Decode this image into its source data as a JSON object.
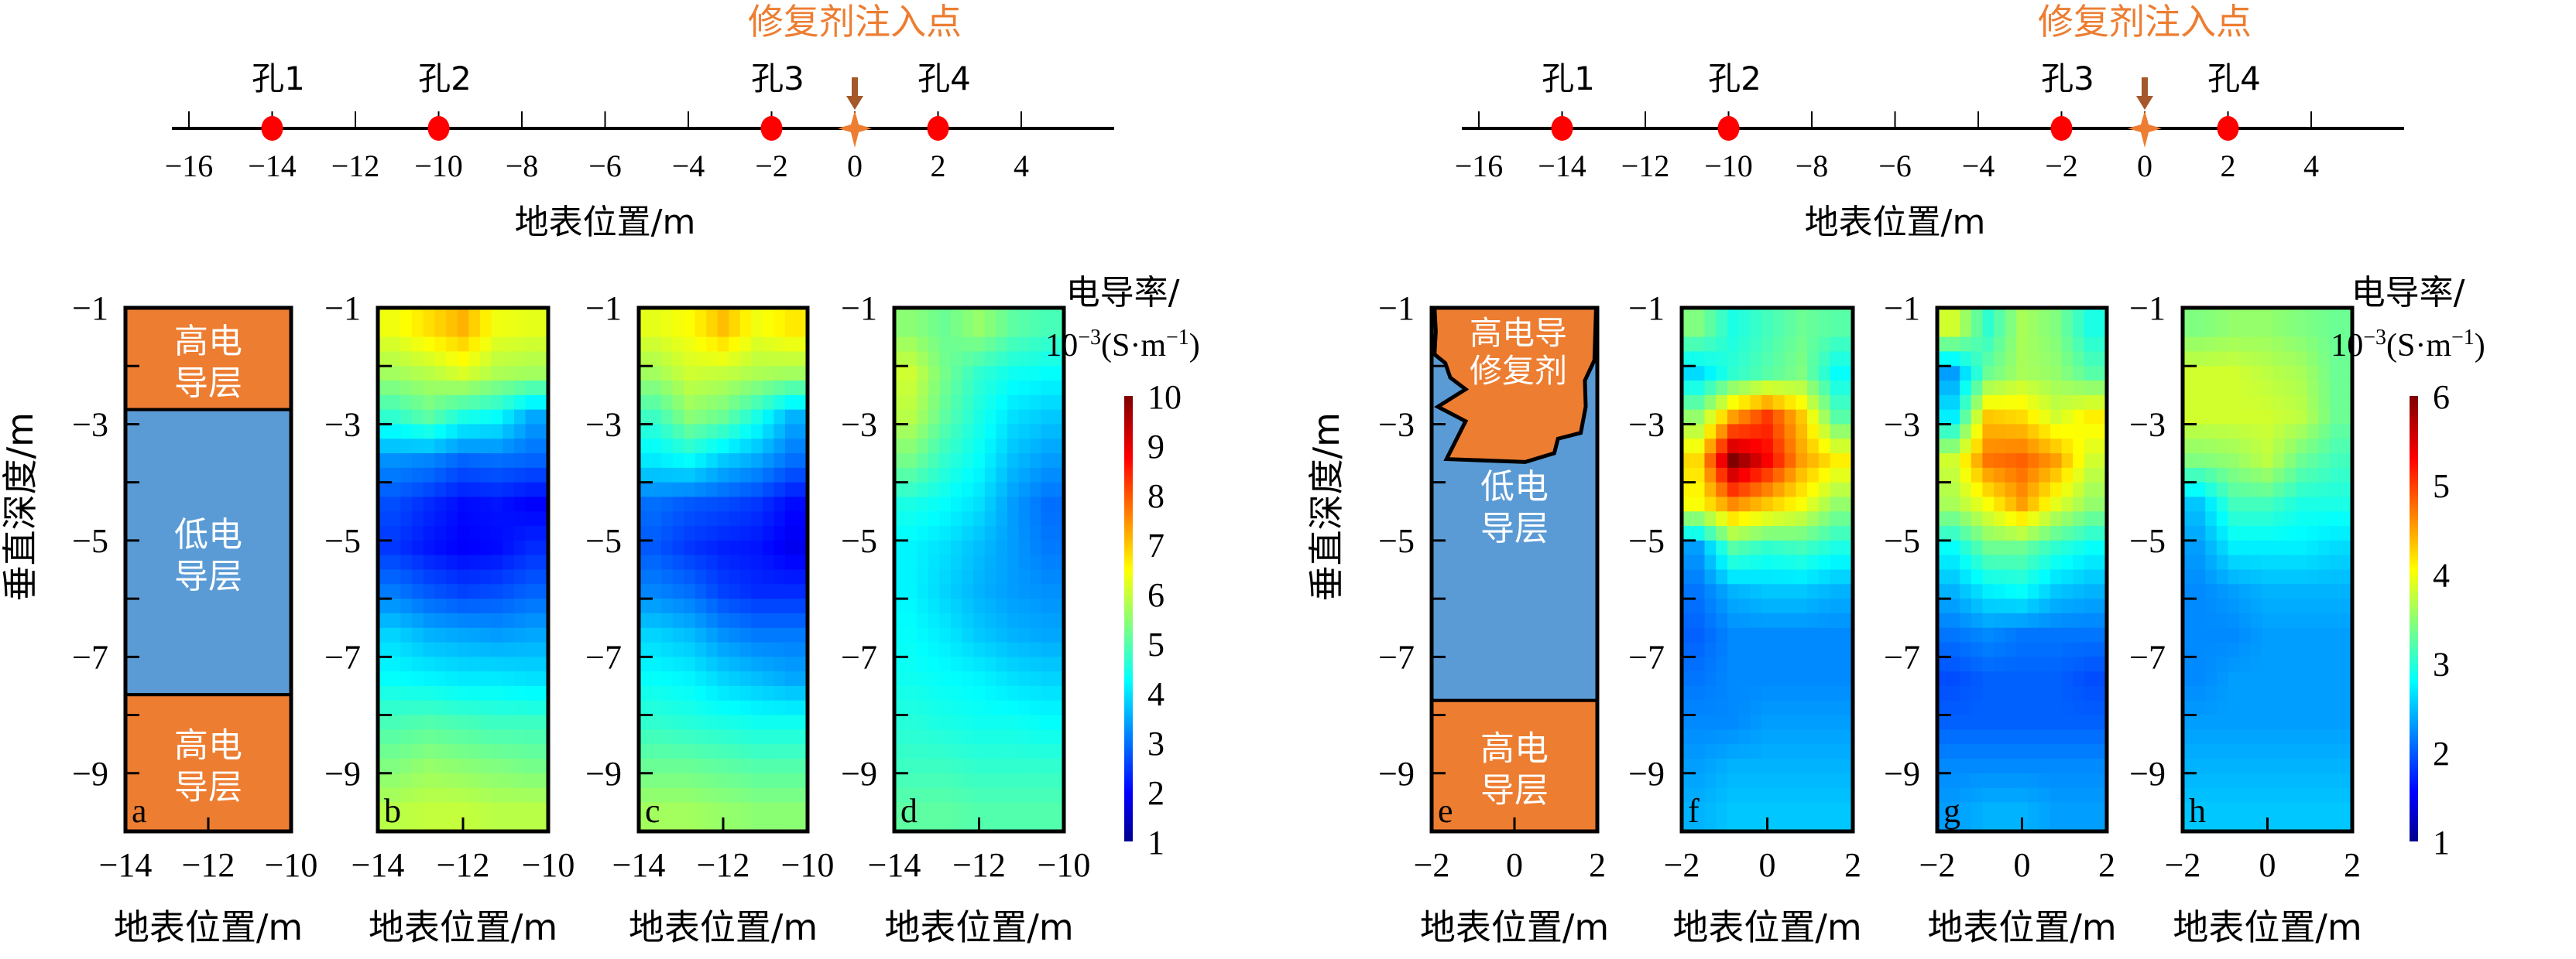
{
  "colors": {
    "high_layer": "#ED7D31",
    "low_layer": "#5B9BD5",
    "hole_marker": "#FF0000",
    "injection_marker": "#ED7D31",
    "injection_arrow": "#A5582A",
    "injection_label": "#ED7D31",
    "axis": "#000000",
    "layer_text": "#FFFFFF"
  },
  "chart_data": [
    {
      "id": "survey-line-left",
      "type": "scatter",
      "title": "修复剂注入点",
      "xlabel": "地表位置/m",
      "xlim": [
        -16,
        4
      ],
      "xticks": [
        -16,
        -14,
        -12,
        -10,
        -8,
        -6,
        -4,
        -2,
        0,
        2,
        4
      ],
      "xtick_labels": [
        "−16",
        "−14",
        "−12",
        "−10",
        "−8",
        "−6",
        "−4",
        "−2",
        "0",
        "2",
        "4"
      ],
      "holes": [
        {
          "label": "孔1",
          "x": -14
        },
        {
          "label": "孔2",
          "x": -10
        },
        {
          "label": "孔3",
          "x": -2
        },
        {
          "label": "孔4",
          "x": 2
        }
      ],
      "injection_point": {
        "x": 0
      }
    },
    {
      "id": "survey-line-right",
      "type": "scatter",
      "title": "修复剂注入点",
      "xlabel": "地表位置/m",
      "xlim": [
        -16,
        4
      ],
      "xticks": [
        -16,
        -14,
        -12,
        -10,
        -8,
        -6,
        -4,
        -2,
        0,
        2,
        4
      ],
      "xtick_labels": [
        "−16",
        "−14",
        "−12",
        "−10",
        "−8",
        "−6",
        "−4",
        "−2",
        "0",
        "2",
        "4"
      ],
      "holes": [
        {
          "label": "孔1",
          "x": -14
        },
        {
          "label": "孔2",
          "x": -10
        },
        {
          "label": "孔3",
          "x": -2
        },
        {
          "label": "孔4",
          "x": 2
        }
      ],
      "injection_point": {
        "x": 0
      }
    },
    {
      "id": "panel-a",
      "type": "diagram",
      "panel_label": "a",
      "xlabel": "地表位置/m",
      "ylabel": "垂直深度/m",
      "xlim": [
        -14,
        -10
      ],
      "ylim": [
        -10,
        -1
      ],
      "xtick_labels": [
        "−14",
        "−12",
        "−10"
      ],
      "xticks": [
        -14,
        -12,
        -10
      ],
      "ytick_labels": [
        "−1",
        "−3",
        "−5",
        "−7",
        "−9"
      ],
      "yticks": [
        -1,
        -3,
        -5,
        -7,
        -9
      ],
      "layers": [
        {
          "name": "high-conductivity-top",
          "text": [
            "高电",
            "导层"
          ],
          "top": -1,
          "bottom": -2.75,
          "kind": "high"
        },
        {
          "name": "low-conductivity",
          "text": [
            "低电",
            "导层"
          ],
          "top": -2.75,
          "bottom": -7.65,
          "kind": "low"
        },
        {
          "name": "high-conductivity-bottom",
          "text": [
            "高电",
            "导层"
          ],
          "top": -7.65,
          "bottom": -10,
          "kind": "high"
        }
      ]
    },
    {
      "id": "panel-b",
      "type": "heatmap",
      "panel_label": "b",
      "xlabel": "地表位置/m",
      "xlim": [
        -14,
        -10
      ],
      "ylim": [
        -10,
        -1
      ],
      "xtick_labels": [
        "−14",
        "−12",
        "−10"
      ],
      "ytick_labels": [
        "−1",
        "−3",
        "−5",
        "−7",
        "−9"
      ],
      "value_range": [
        1,
        10
      ],
      "unit": "10⁻³ S·m⁻¹",
      "grid": [
        [
          6.5,
          6.9,
          7.3,
          6.5,
          6.4
        ],
        [
          5.8,
          6.0,
          6.3,
          5.9,
          5.8
        ],
        [
          4.8,
          5.2,
          4.6,
          4.4,
          3.6
        ],
        [
          3.4,
          3.3,
          3.0,
          3.1,
          3.0
        ],
        [
          2.8,
          2.5,
          2.2,
          2.3,
          2.1
        ],
        [
          2.6,
          2.3,
          2.1,
          2.2,
          2.5
        ],
        [
          3.2,
          2.9,
          2.7,
          2.8,
          3.0
        ],
        [
          4.0,
          3.7,
          3.6,
          3.5,
          3.6
        ],
        [
          4.4,
          4.3,
          4.2,
          4.2,
          4.1
        ],
        [
          5.0,
          5.1,
          5.0,
          4.9,
          4.9
        ],
        [
          5.5,
          5.7,
          5.6,
          5.5,
          5.4
        ],
        [
          6.0,
          6.1,
          6.1,
          6.0,
          6.0
        ]
      ]
    },
    {
      "id": "panel-c",
      "type": "heatmap",
      "panel_label": "c",
      "xlabel": "地表位置/m",
      "xlim": [
        -14,
        -10
      ],
      "ylim": [
        -10,
        -1
      ],
      "xtick_labels": [
        "−14",
        "−12",
        "−10"
      ],
      "ytick_labels": [
        "−1",
        "−3",
        "−5",
        "−7",
        "−9"
      ],
      "value_range": [
        1,
        10
      ],
      "unit": "10⁻³ S·m⁻¹",
      "grid": [
        [
          6.4,
          6.6,
          7.2,
          6.5,
          6.8
        ],
        [
          5.8,
          6.2,
          6.1,
          5.9,
          5.8
        ],
        [
          4.9,
          5.6,
          5.3,
          4.6,
          3.7
        ],
        [
          4.2,
          4.4,
          3.9,
          3.6,
          3.1
        ],
        [
          3.1,
          2.9,
          2.8,
          2.6,
          2.2
        ],
        [
          2.9,
          2.6,
          2.4,
          2.3,
          2.0
        ],
        [
          3.3,
          3.1,
          2.7,
          2.5,
          2.5
        ],
        [
          4.0,
          3.8,
          3.4,
          3.2,
          3.2
        ],
        [
          4.4,
          4.3,
          4.0,
          3.8,
          3.6
        ],
        [
          4.8,
          4.7,
          4.6,
          4.5,
          4.5
        ],
        [
          5.3,
          5.3,
          5.2,
          5.1,
          5.1
        ],
        [
          5.8,
          5.8,
          5.7,
          5.6,
          5.6
        ]
      ]
    },
    {
      "id": "panel-d",
      "type": "heatmap",
      "panel_label": "d",
      "xlabel": "地表位置/m",
      "xlim": [
        -14,
        -10
      ],
      "ylim": [
        -10,
        -1
      ],
      "xtick_labels": [
        "−14",
        "−12",
        "−10"
      ],
      "ytick_labels": [
        "−1",
        "−3",
        "−5",
        "−7",
        "−9"
      ],
      "value_range": [
        1,
        10
      ],
      "unit": "10⁻³ S·m⁻¹",
      "grid": [
        [
          5.6,
          5.3,
          5.7,
          5.2,
          5.0
        ],
        [
          6.2,
          5.4,
          4.8,
          4.5,
          4.4
        ],
        [
          6.0,
          5.2,
          4.6,
          4.1,
          3.9
        ],
        [
          5.4,
          4.8,
          4.4,
          3.8,
          3.5
        ],
        [
          4.6,
          4.4,
          4.1,
          3.5,
          3.1
        ],
        [
          4.3,
          4.1,
          3.8,
          3.5,
          3.2
        ],
        [
          4.3,
          4.0,
          3.7,
          3.5,
          3.4
        ],
        [
          4.4,
          4.2,
          3.9,
          3.7,
          3.6
        ],
        [
          4.5,
          4.4,
          4.3,
          4.1,
          4.0
        ],
        [
          4.7,
          4.6,
          4.5,
          4.5,
          4.4
        ],
        [
          4.9,
          4.9,
          4.8,
          4.8,
          4.8
        ],
        [
          5.2,
          5.2,
          5.1,
          5.1,
          5.1
        ]
      ]
    },
    {
      "id": "panel-e",
      "type": "diagram",
      "panel_label": "e",
      "xlabel": "地表位置/m",
      "ylabel": "垂直深度/m",
      "xlim": [
        -2,
        2
      ],
      "ylim": [
        -10,
        -1
      ],
      "xtick_labels": [
        "−2",
        "0",
        "2"
      ],
      "xticks": [
        -2,
        0,
        2
      ],
      "ytick_labels": [
        "−1",
        "−3",
        "−5",
        "−7",
        "−9"
      ],
      "yticks": [
        -1,
        -3,
        -5,
        -7,
        -9
      ],
      "layers": [
        {
          "name": "low-conductivity",
          "text": [
            "低电",
            "导层"
          ],
          "top": -1,
          "bottom": -7.75,
          "kind": "low"
        },
        {
          "name": "high-conductivity-bottom",
          "text": [
            "高电",
            "导层"
          ],
          "top": -7.75,
          "bottom": -10,
          "kind": "high"
        }
      ],
      "remediation_agent": {
        "text": [
          "高电导",
          "修复剂"
        ],
        "outline": [
          [
            -1.93,
            -1.0
          ],
          [
            -1.9,
            -1.4
          ],
          [
            -1.93,
            -1.8
          ],
          [
            -1.67,
            -1.95
          ],
          [
            -1.55,
            -2.2
          ],
          [
            -1.18,
            -2.4
          ],
          [
            -1.85,
            -2.7
          ],
          [
            -1.18,
            -2.95
          ],
          [
            -1.64,
            -3.6
          ],
          [
            0.26,
            -3.65
          ],
          [
            0.96,
            -3.5
          ],
          [
            1.05,
            -3.25
          ],
          [
            1.6,
            -3.15
          ],
          [
            1.72,
            -2.7
          ],
          [
            1.7,
            -2.25
          ],
          [
            1.93,
            -1.9
          ],
          [
            1.97,
            -1.0
          ]
        ]
      }
    },
    {
      "id": "panel-f",
      "type": "heatmap",
      "panel_label": "f",
      "xlabel": "地表位置/m",
      "xlim": [
        -2,
        2
      ],
      "ylim": [
        -10,
        -1
      ],
      "xtick_labels": [
        "−2",
        "0",
        "2"
      ],
      "ytick_labels": [
        "−1",
        "−3",
        "−5",
        "−7",
        "−9"
      ],
      "value_range": [
        1,
        6
      ],
      "unit": "10⁻³ S·m⁻¹",
      "grid": [
        [
          3.5,
          3.0,
          3.2,
          3.4,
          3.3
        ],
        [
          2.7,
          3.1,
          3.3,
          3.5,
          2.9
        ],
        [
          3.6,
          4.6,
          5.1,
          4.4,
          3.3
        ],
        [
          4.3,
          6.0,
          5.4,
          4.6,
          4.2
        ],
        [
          4.1,
          4.7,
          4.4,
          4.1,
          3.6
        ],
        [
          2.4,
          3.3,
          3.1,
          3.2,
          3.0
        ],
        [
          2.2,
          2.5,
          2.6,
          2.6,
          2.5
        ],
        [
          2.1,
          2.3,
          2.3,
          2.3,
          2.3
        ],
        [
          2.2,
          2.3,
          2.3,
          2.3,
          2.3
        ],
        [
          2.3,
          2.3,
          2.4,
          2.4,
          2.4
        ],
        [
          2.4,
          2.5,
          2.5,
          2.5,
          2.5
        ],
        [
          2.5,
          2.6,
          2.6,
          2.6,
          2.6
        ]
      ]
    },
    {
      "id": "panel-g",
      "type": "heatmap",
      "panel_label": "g",
      "xlabel": "地表位置/m",
      "xlim": [
        -2,
        2
      ],
      "ylim": [
        -10,
        -1
      ],
      "xtick_labels": [
        "−2",
        "0",
        "2"
      ],
      "ytick_labels": [
        "−1",
        "−3",
        "−5",
        "−7",
        "−9"
      ],
      "value_range": [
        1,
        6
      ],
      "unit": "10⁻³ S·m⁻¹",
      "grid": [
        [
          3.9,
          3.1,
          3.7,
          3.5,
          3.0
        ],
        [
          2.4,
          3.4,
          3.7,
          3.6,
          3.3
        ],
        [
          2.8,
          4.4,
          4.3,
          3.9,
          4.2
        ],
        [
          3.9,
          4.8,
          4.9,
          4.6,
          3.9
        ],
        [
          3.7,
          4.1,
          4.6,
          4.0,
          3.6
        ],
        [
          2.9,
          3.4,
          3.4,
          3.1,
          2.9
        ],
        [
          2.5,
          2.8,
          2.9,
          2.6,
          2.5
        ],
        [
          2.2,
          2.3,
          2.2,
          2.2,
          2.2
        ],
        [
          2.0,
          2.1,
          2.1,
          2.1,
          2.0
        ],
        [
          2.1,
          2.1,
          2.1,
          2.1,
          2.1
        ],
        [
          2.3,
          2.3,
          2.3,
          2.3,
          2.3
        ],
        [
          2.4,
          2.5,
          2.5,
          2.4,
          2.4
        ]
      ]
    },
    {
      "id": "panel-h",
      "type": "heatmap",
      "panel_label": "h",
      "xlabel": "地表位置/m",
      "xlim": [
        -2,
        2
      ],
      "ylim": [
        -10,
        -1
      ],
      "xtick_labels": [
        "−2",
        "0",
        "2"
      ],
      "ytick_labels": [
        "−1",
        "−3",
        "−5",
        "−7",
        "−9"
      ],
      "value_range": [
        1,
        6
      ],
      "unit": "10⁻³ S·m⁻¹",
      "grid": [
        [
          3.5,
          3.6,
          3.6,
          3.5,
          3.4
        ],
        [
          3.9,
          3.9,
          3.8,
          3.7,
          3.4
        ],
        [
          3.9,
          3.9,
          3.9,
          3.8,
          3.4
        ],
        [
          3.5,
          3.6,
          3.8,
          3.4,
          3.2
        ],
        [
          2.6,
          3.2,
          3.2,
          3.0,
          3.0
        ],
        [
          2.4,
          2.8,
          2.8,
          2.8,
          2.7
        ],
        [
          2.3,
          2.4,
          2.5,
          2.5,
          2.5
        ],
        [
          2.3,
          2.3,
          2.4,
          2.4,
          2.4
        ],
        [
          2.3,
          2.4,
          2.4,
          2.4,
          2.4
        ],
        [
          2.4,
          2.4,
          2.4,
          2.4,
          2.4
        ],
        [
          2.5,
          2.5,
          2.5,
          2.5,
          2.5
        ],
        [
          2.6,
          2.6,
          2.6,
          2.6,
          2.6
        ]
      ]
    },
    {
      "id": "colorbar-left",
      "type": "colorbar",
      "title_line1": "电导率/",
      "title_line2_base": "10",
      "title_line2_exp": "−3",
      "title_line2_unit": "(S·m",
      "title_line2_unit_exp": "−1",
      "title_line2_close": ")",
      "range": [
        1,
        10
      ],
      "ticks": [
        1,
        2,
        3,
        4,
        5,
        6,
        7,
        8,
        9,
        10
      ],
      "tick_labels": [
        "1",
        "2",
        "3",
        "4",
        "5",
        "6",
        "7",
        "8",
        "9",
        "10"
      ],
      "colormap": "jet"
    },
    {
      "id": "colorbar-right",
      "type": "colorbar",
      "title_line1": "电导率/",
      "title_line2_base": "10",
      "title_line2_exp": "−3",
      "title_line2_unit": "(S·m",
      "title_line2_unit_exp": "−1",
      "title_line2_close": ")",
      "range": [
        1,
        6
      ],
      "ticks": [
        1,
        2,
        3,
        4,
        5,
        6
      ],
      "tick_labels": [
        "1",
        "2",
        "3",
        "4",
        "5",
        "6"
      ],
      "colormap": "jet"
    }
  ]
}
